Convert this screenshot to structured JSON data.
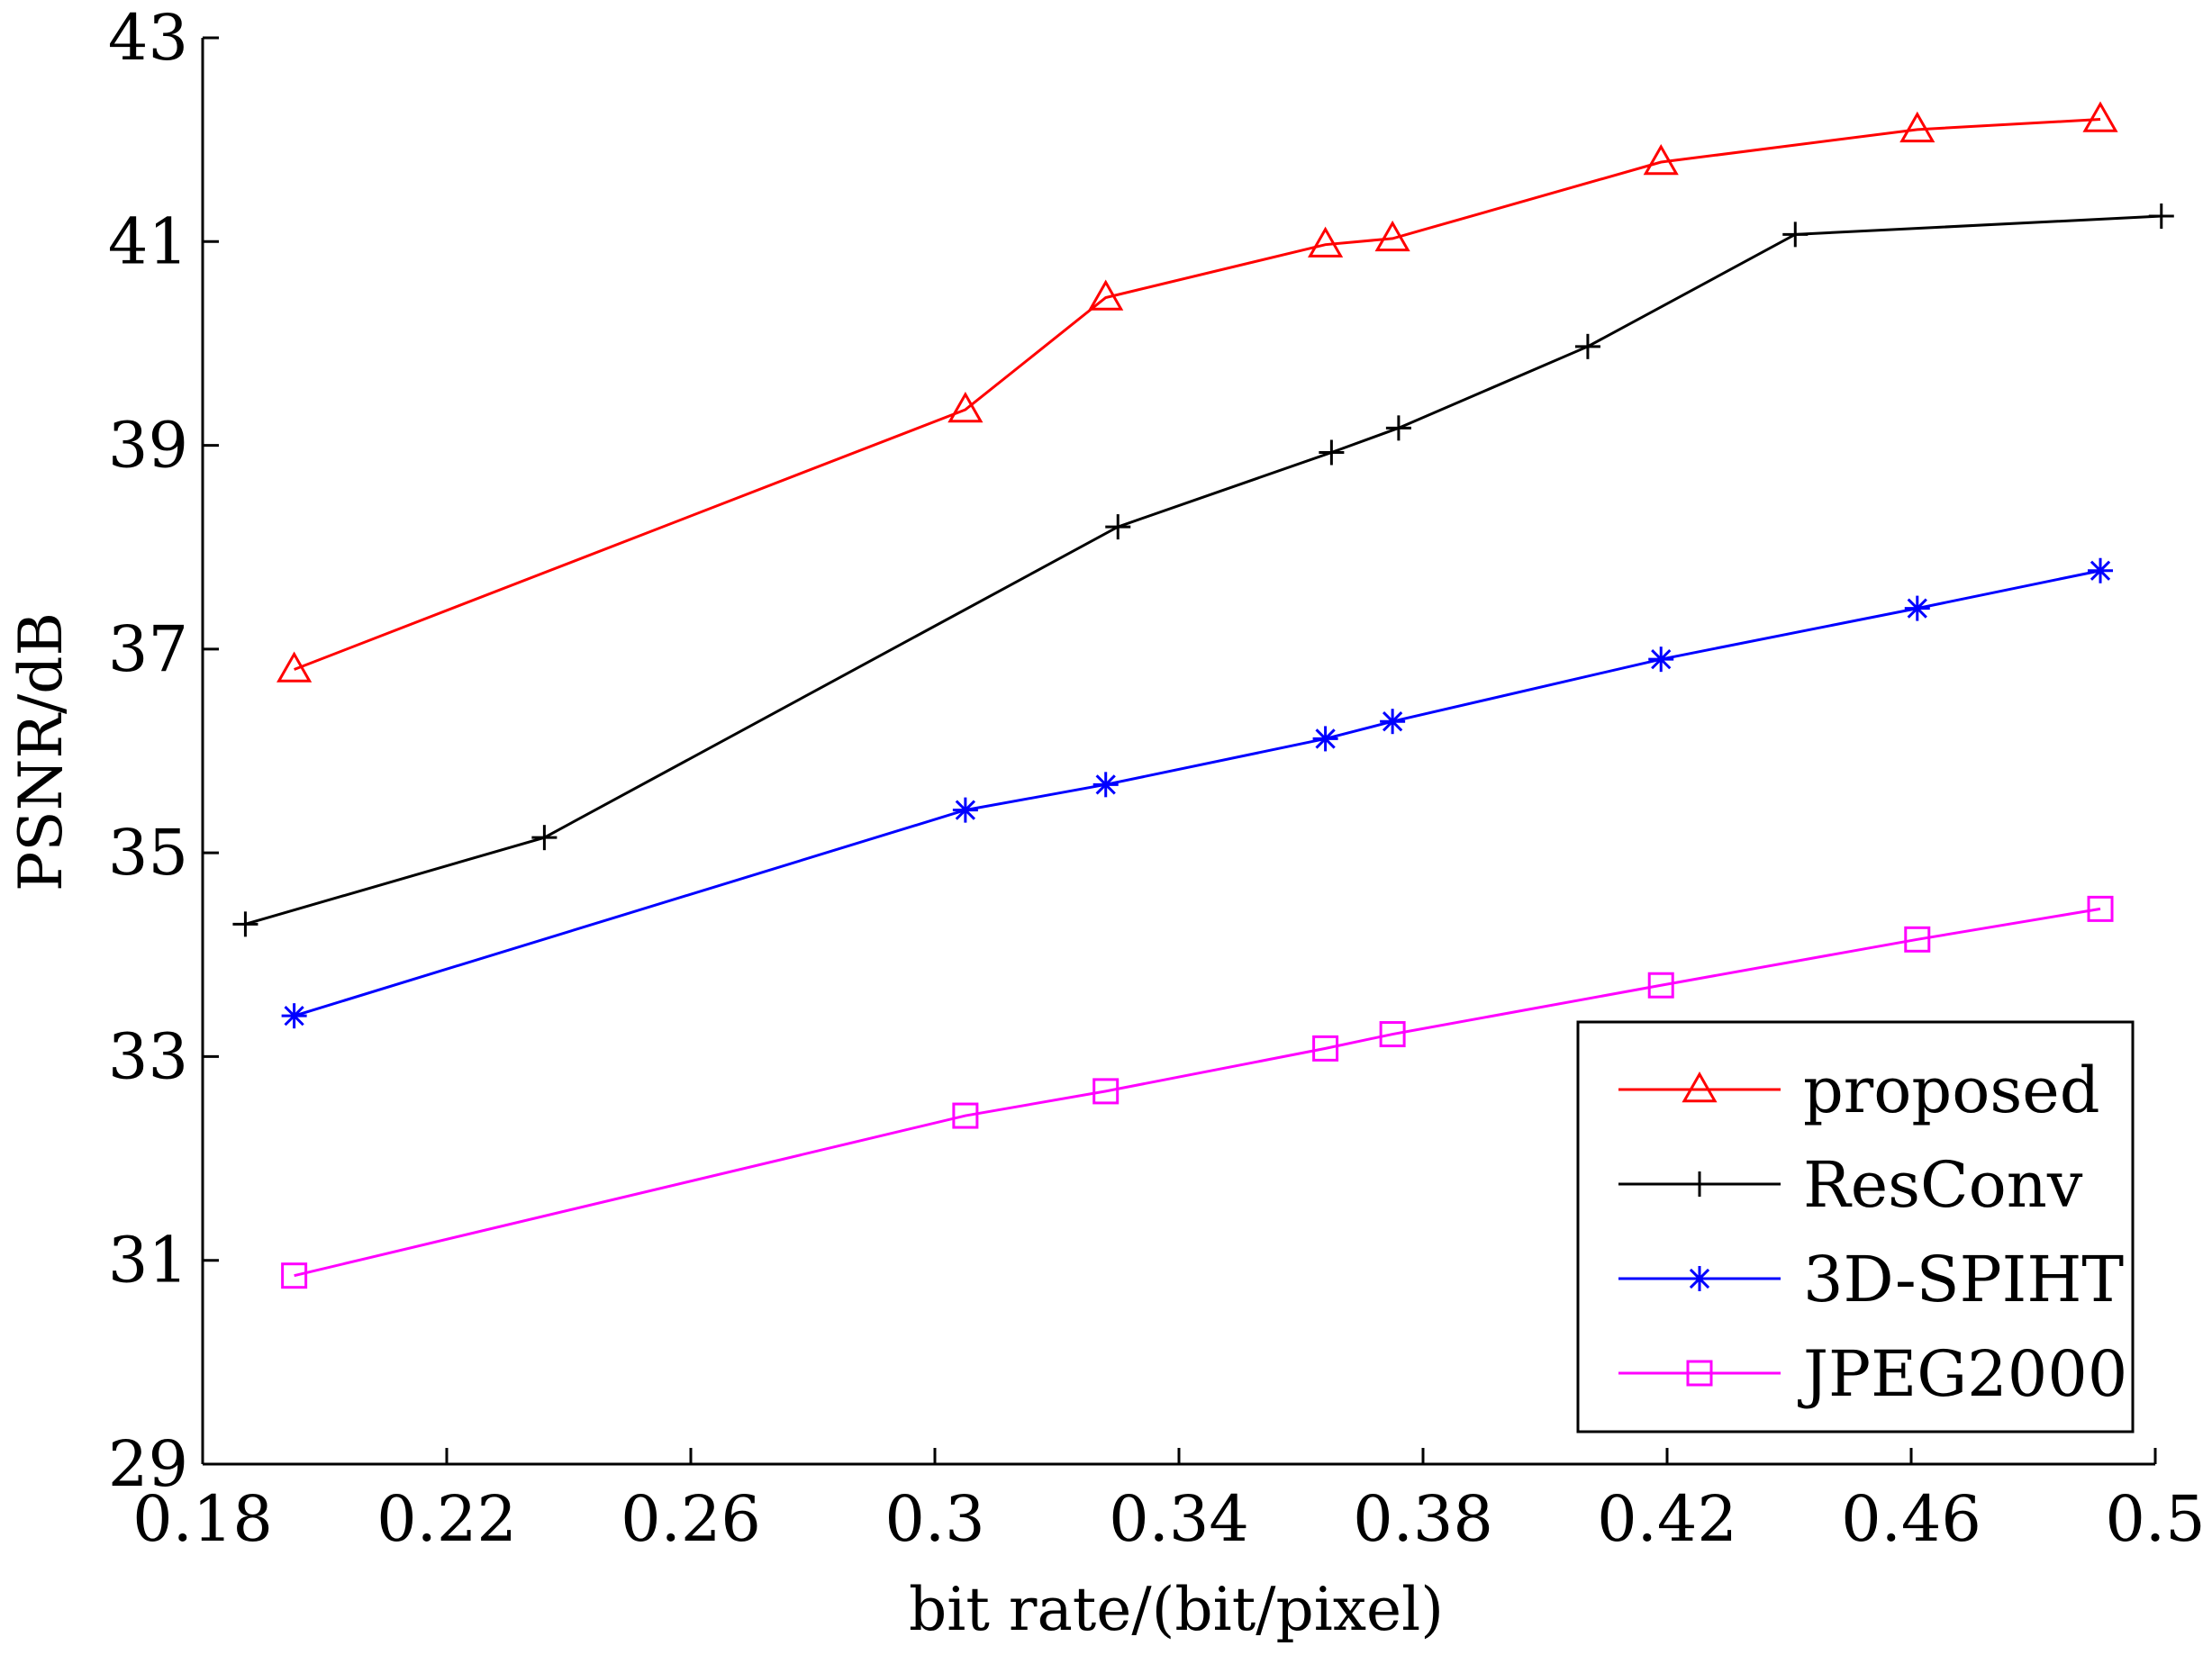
{
  "chart_data": {
    "type": "line",
    "title": "",
    "xlabel": "bit rate/(bit/pixel)",
    "ylabel": "PSNR/dB",
    "xlim": [
      0.18,
      0.5
    ],
    "ylim": [
      29,
      43
    ],
    "xticks": [
      0.18,
      0.22,
      0.26,
      0.3,
      0.34,
      0.38,
      0.42,
      0.46,
      0.5
    ],
    "xtick_labels": [
      "0.18",
      "0.22",
      "0.26",
      "0.3",
      "0.34",
      "0.38",
      "0.42",
      "0.46",
      "0.5"
    ],
    "yticks": [
      29,
      31,
      33,
      35,
      37,
      39,
      41,
      43
    ],
    "ytick_labels": [
      "29",
      "31",
      "33",
      "35",
      "37",
      "39",
      "41",
      "43"
    ],
    "grid": false,
    "legend_position": "bottom-right",
    "series": [
      {
        "name": "proposed",
        "color": "#ff0000",
        "marker": "triangle",
        "x": [
          0.195,
          0.305,
          0.328,
          0.364,
          0.375,
          0.419,
          0.461,
          0.491
        ],
        "y": [
          36.8,
          39.35,
          40.45,
          40.97,
          41.03,
          41.78,
          42.1,
          42.2
        ]
      },
      {
        "name": "ResConv",
        "color": "#000000",
        "marker": "plus",
        "x": [
          0.187,
          0.236,
          0.33,
          0.365,
          0.376,
          0.407,
          0.441,
          0.501
        ],
        "y": [
          34.3,
          35.15,
          38.2,
          38.93,
          39.17,
          39.97,
          41.07,
          41.25
        ]
      },
      {
        "name": "3D-SPIHT",
        "color": "#0000ff",
        "marker": "asterisk",
        "x": [
          0.195,
          0.305,
          0.328,
          0.364,
          0.375,
          0.419,
          0.461,
          0.491
        ],
        "y": [
          33.4,
          35.42,
          35.67,
          36.12,
          36.29,
          36.9,
          37.4,
          37.77
        ]
      },
      {
        "name": "JPEG2000",
        "color": "#ff00ff",
        "marker": "square",
        "x": [
          0.195,
          0.305,
          0.328,
          0.364,
          0.375,
          0.419,
          0.461,
          0.491
        ],
        "y": [
          30.85,
          32.42,
          32.66,
          33.08,
          33.22,
          33.7,
          34.15,
          34.45
        ]
      }
    ]
  }
}
